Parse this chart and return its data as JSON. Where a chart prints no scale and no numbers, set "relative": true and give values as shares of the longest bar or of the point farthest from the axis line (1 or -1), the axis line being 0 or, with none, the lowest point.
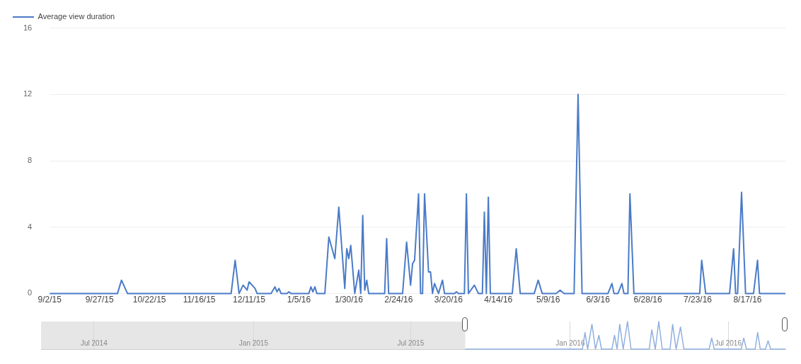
{
  "chart_data": [
    {
      "type": "line",
      "legend": "top left",
      "grid": "y",
      "xlim": [
        "2015-09-02",
        "2016-09-05"
      ],
      "ylim": [
        0,
        16
      ],
      "yticks": [
        0,
        4,
        8,
        12,
        16
      ],
      "xticks": [
        {
          "value": "2015-09-02",
          "label": "9/2/15"
        },
        {
          "value": "2015-09-27",
          "label": "9/27/15"
        },
        {
          "value": "2015-10-22",
          "label": "10/22/15"
        },
        {
          "value": "2015-11-16",
          "label": "11/16/15"
        },
        {
          "value": "2015-12-11",
          "label": "12/11/15"
        },
        {
          "value": "2016-01-05",
          "label": "1/5/16"
        },
        {
          "value": "2016-01-30",
          "label": "1/30/16"
        },
        {
          "value": "2016-02-24",
          "label": "2/24/16"
        },
        {
          "value": "2016-03-20",
          "label": "3/20/16"
        },
        {
          "value": "2016-04-14",
          "label": "4/14/16"
        },
        {
          "value": "2016-05-09",
          "label": "5/9/16"
        },
        {
          "value": "2016-06-03",
          "label": "6/3/16"
        },
        {
          "value": "2016-06-28",
          "label": "6/28/16"
        },
        {
          "value": "2016-07-23",
          "label": "7/23/16"
        },
        {
          "value": "2016-08-17",
          "label": "8/17/16"
        }
      ],
      "series": [
        {
          "name": "Average view duration",
          "color": "#4a7bc8",
          "x": [
            "2015-09-02",
            "2015-10-06",
            "2015-10-08",
            "2015-10-11",
            "2015-12-02",
            "2015-12-04",
            "2015-12-06",
            "2015-12-08",
            "2015-12-10",
            "2015-12-11",
            "2015-12-14",
            "2015-12-15",
            "2015-12-22",
            "2015-12-24",
            "2015-12-25",
            "2015-12-26",
            "2015-12-27",
            "2015-12-30",
            "2015-12-31",
            "2016-01-01",
            "2016-01-10",
            "2016-01-11",
            "2016-01-12",
            "2016-01-13",
            "2016-01-14",
            "2016-01-18",
            "2016-01-20",
            "2016-01-23",
            "2016-01-25",
            "2016-01-28",
            "2016-01-29",
            "2016-01-30",
            "2016-01-31",
            "2016-02-02",
            "2016-02-04",
            "2016-02-05",
            "2016-02-06",
            "2016-02-07",
            "2016-02-08",
            "2016-02-09",
            "2016-02-17",
            "2016-02-18",
            "2016-02-19",
            "2016-02-26",
            "2016-02-28",
            "2016-03-01",
            "2016-03-02",
            "2016-03-03",
            "2016-03-05",
            "2016-03-06",
            "2016-03-07",
            "2016-03-08",
            "2016-03-10",
            "2016-03-11",
            "2016-03-12",
            "2016-03-13",
            "2016-03-15",
            "2016-03-17",
            "2016-03-18",
            "2016-03-23",
            "2016-03-24",
            "2016-03-25",
            "2016-03-28",
            "2016-03-29",
            "2016-03-30",
            "2016-04-02",
            "2016-04-04",
            "2016-04-06",
            "2016-04-07",
            "2016-04-08",
            "2016-04-09",
            "2016-04-10",
            "2016-04-21",
            "2016-04-23",
            "2016-04-25",
            "2016-05-02",
            "2016-05-04",
            "2016-05-06",
            "2016-05-13",
            "2016-05-15",
            "2016-05-17",
            "2016-05-22",
            "2016-05-24",
            "2016-05-26",
            "2016-06-08",
            "2016-06-10",
            "2016-06-11",
            "2016-06-13",
            "2016-06-15",
            "2016-06-16",
            "2016-06-18",
            "2016-06-19",
            "2016-06-21",
            "2016-07-24",
            "2016-07-25",
            "2016-07-27",
            "2016-08-08",
            "2016-08-10",
            "2016-08-11",
            "2016-08-12",
            "2016-08-14",
            "2016-08-16",
            "2016-08-20",
            "2016-08-22",
            "2016-08-23",
            "2016-09-05"
          ],
          "values": [
            0,
            0,
            0.8,
            0,
            0,
            2.0,
            0,
            0.5,
            0.2,
            0.7,
            0.3,
            0,
            0,
            0.4,
            0.1,
            0.3,
            0,
            0,
            0.1,
            0,
            0,
            0.4,
            0.1,
            0.4,
            0,
            0,
            3.4,
            2.1,
            5.2,
            0.3,
            2.7,
            2.1,
            2.9,
            0,
            1.4,
            0,
            4.7,
            0.2,
            0.8,
            0,
            0,
            3.3,
            0,
            0,
            3.1,
            0.5,
            1.8,
            2.0,
            6.0,
            0,
            0,
            6.0,
            1.3,
            1.3,
            0,
            0.6,
            0,
            0.8,
            0,
            0,
            0.1,
            0,
            0,
            6.0,
            0,
            0.5,
            0,
            0,
            4.9,
            0,
            5.8,
            0,
            0,
            2.7,
            0,
            0,
            0.8,
            0,
            0,
            0.2,
            0,
            0,
            12.0,
            0,
            0,
            0.6,
            0,
            0,
            0.6,
            0,
            0,
            6.0,
            0,
            0,
            2.0,
            0,
            0,
            2.7,
            0,
            0,
            6.1,
            0,
            0,
            2.0,
            0,
            0
          ]
        }
      ]
    },
    {
      "type": "line",
      "relative": true,
      "grid": "x",
      "tick_labels": "x",
      "xlim": [
        "2014-05-01",
        "2016-09-05"
      ],
      "xticks": [
        {
          "value": "2014-07-01",
          "label": "Jul 2014"
        },
        {
          "value": "2015-01-01",
          "label": "Jan 2015"
        },
        {
          "value": "2015-07-01",
          "label": "Jul 2015"
        },
        {
          "value": "2016-01-01",
          "label": "Jan 2016"
        },
        {
          "value": "2016-07-01",
          "label": "Jul 2016"
        }
      ],
      "bands": [
        {
          "axis": "x",
          "from": "2014-05-01",
          "to": "2015-09-02",
          "color": "#e6e6e6"
        }
      ],
      "series": [
        {
          "color": "#8fb0e0",
          "x": [
            "2015-09-02",
            "2016-01-15",
            "2016-01-18",
            "2016-01-21",
            "2016-01-26",
            "2016-01-30",
            "2016-02-03",
            "2016-02-06",
            "2016-02-18",
            "2016-02-21",
            "2016-02-24",
            "2016-02-27",
            "2016-03-02",
            "2016-03-07",
            "2016-03-11",
            "2016-04-01",
            "2016-04-04",
            "2016-04-08",
            "2016-04-12",
            "2016-04-16",
            "2016-04-25",
            "2016-04-28",
            "2016-05-02",
            "2016-05-07",
            "2016-05-11",
            "2016-06-09",
            "2016-06-12",
            "2016-06-15",
            "2016-07-16",
            "2016-07-19",
            "2016-07-22",
            "2016-08-01",
            "2016-08-04",
            "2016-08-07",
            "2016-08-13",
            "2016-08-16",
            "2016-08-19",
            "2016-09-05"
          ],
          "values": [
            0,
            0,
            0.6,
            0,
            0.9,
            0,
            0.5,
            0,
            0,
            0.5,
            0,
            0.9,
            0,
            1,
            0,
            0,
            0.7,
            0,
            1,
            0,
            0,
            0.9,
            0,
            0.8,
            0,
            0,
            0.4,
            0,
            0,
            0.4,
            0,
            0,
            0.6,
            0,
            0,
            0.3,
            0,
            0
          ]
        }
      ]
    }
  ]
}
